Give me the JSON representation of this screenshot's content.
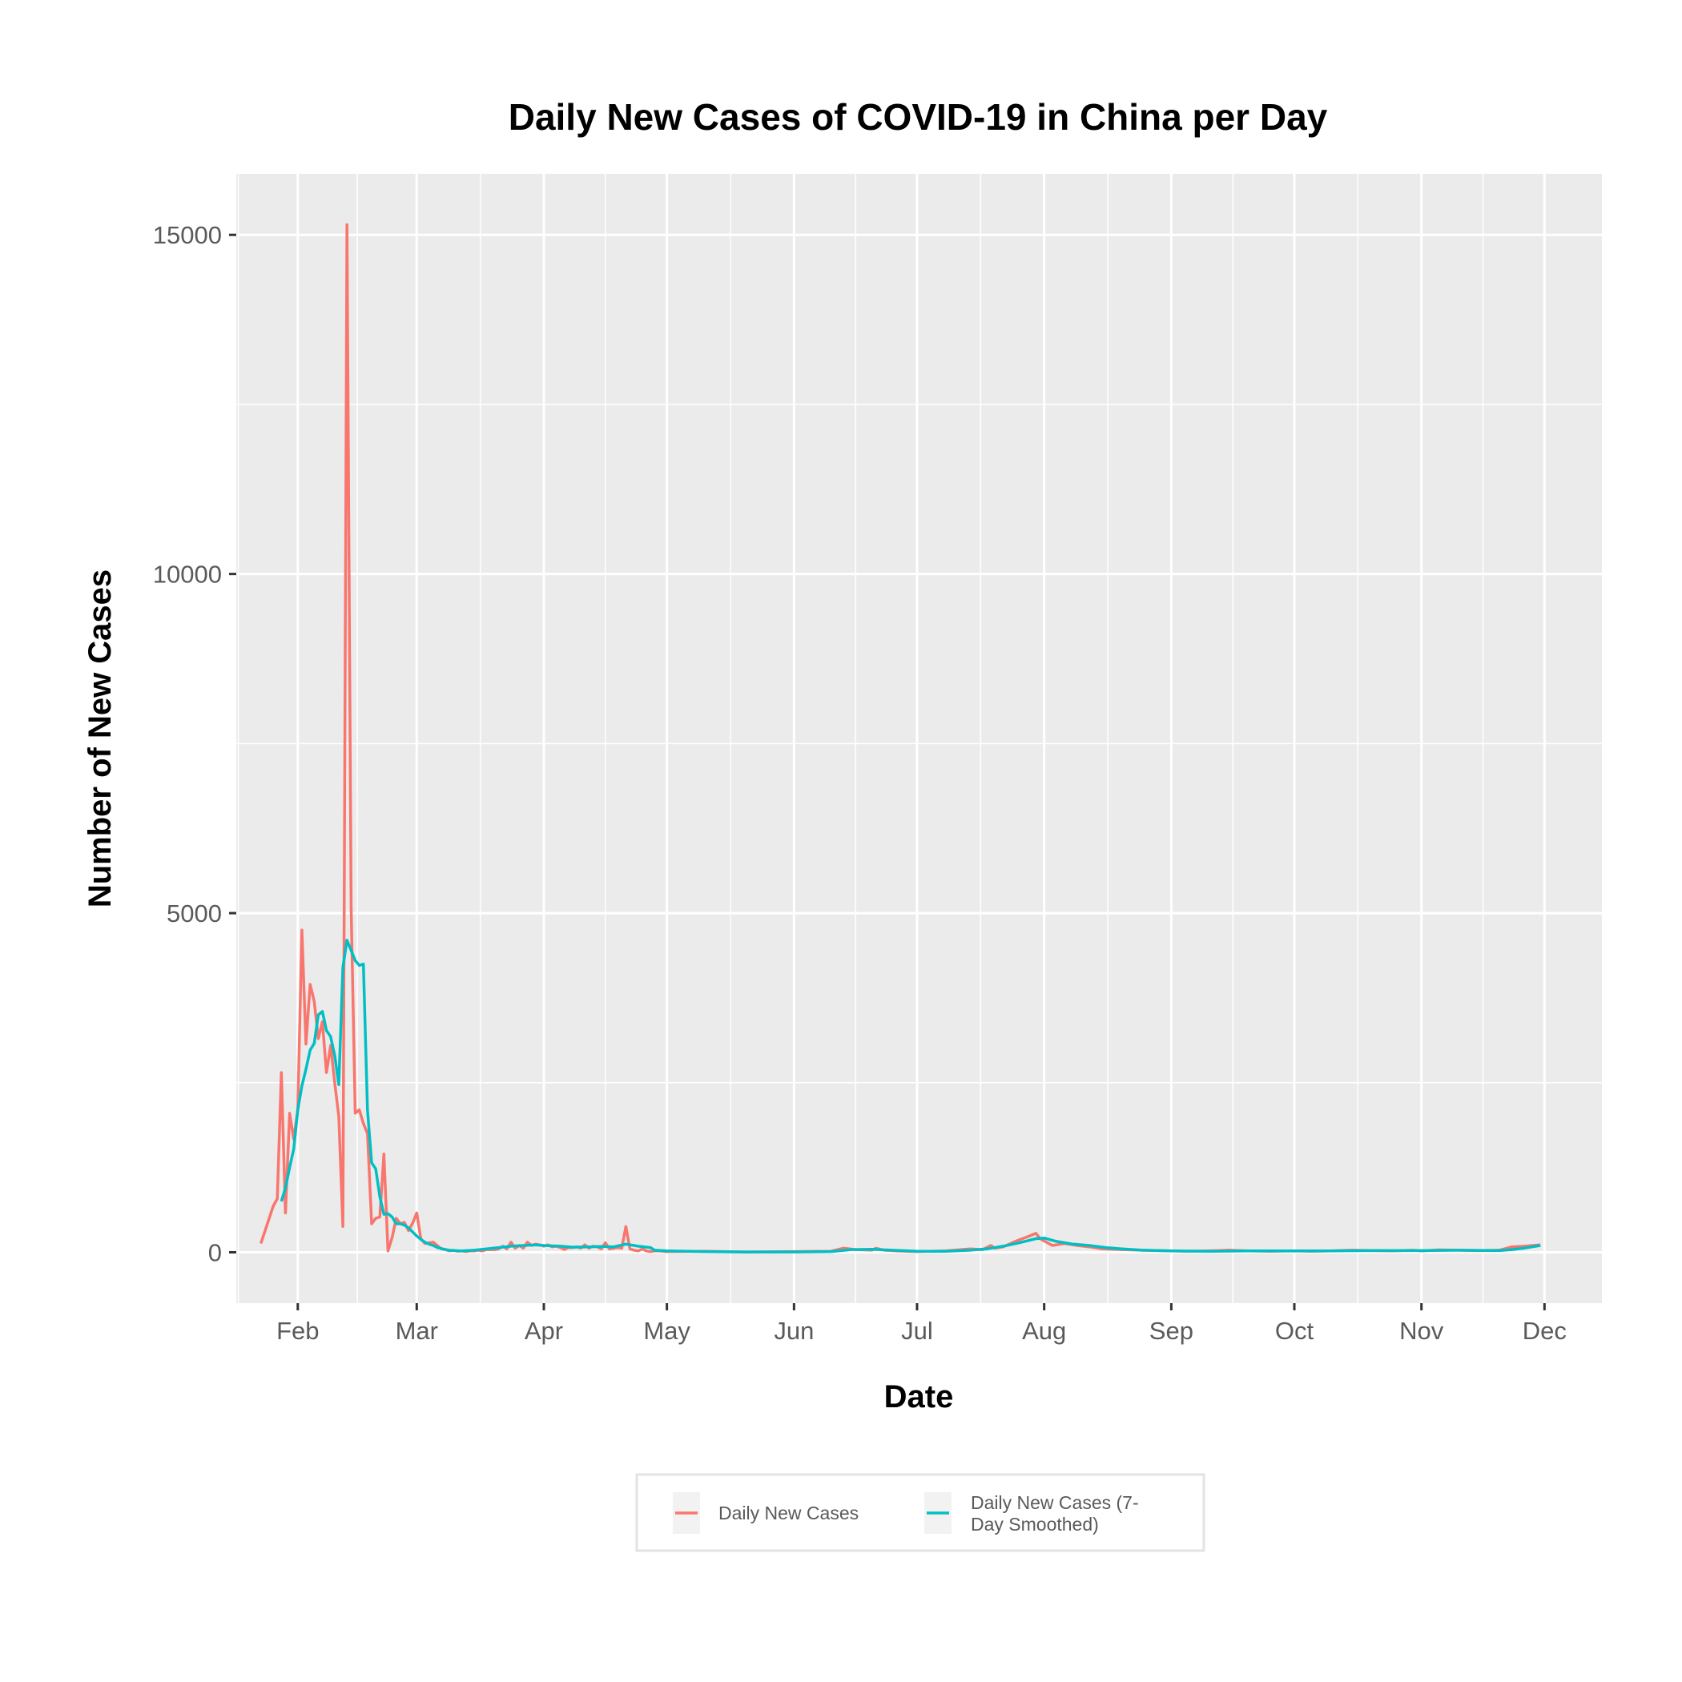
{
  "chart_data": {
    "type": "line",
    "title": "Daily New Cases of COVID-19 in China per Day",
    "xlabel": "Date",
    "ylabel": "Number of New Cases",
    "x_tick_labels": [
      "Feb",
      "Mar",
      "Apr",
      "May",
      "Jun",
      "Jul",
      "Aug",
      "Sep",
      "Oct",
      "Nov",
      "Dec"
    ],
    "x_tick_dates": [
      "2020-02-01",
      "2020-03-01",
      "2020-04-01",
      "2020-05-01",
      "2020-06-01",
      "2020-07-01",
      "2020-08-01",
      "2020-09-01",
      "2020-10-01",
      "2020-11-01",
      "2020-12-01"
    ],
    "xlim": [
      "2020-01-17",
      "2020-12-15"
    ],
    "y_ticks": [
      0,
      5000,
      10000,
      15000
    ],
    "y_tick_labels": [
      "0",
      "5000",
      "10000",
      "15000"
    ],
    "ylim": [
      -750,
      15900
    ],
    "grid": true,
    "legend_position": "bottom",
    "series": [
      {
        "name": "Daily New Cases",
        "color": "#F8766D",
        "points": [
          [
            "2020-01-23",
            130
          ],
          [
            "2020-01-26",
            680
          ],
          [
            "2020-01-27",
            790
          ],
          [
            "2020-01-28",
            2650
          ],
          [
            "2020-01-29",
            580
          ],
          [
            "2020-01-30",
            2050
          ],
          [
            "2020-01-31",
            1670
          ],
          [
            "2020-02-01",
            2100
          ],
          [
            "2020-02-02",
            4750
          ],
          [
            "2020-02-03",
            3070
          ],
          [
            "2020-02-04",
            3950
          ],
          [
            "2020-02-05",
            3700
          ],
          [
            "2020-02-06",
            3150
          ],
          [
            "2020-02-07",
            3400
          ],
          [
            "2020-02-08",
            2650
          ],
          [
            "2020-02-09",
            3050
          ],
          [
            "2020-02-10",
            2500
          ],
          [
            "2020-02-11",
            2000
          ],
          [
            "2020-02-12",
            380
          ],
          [
            "2020-02-13",
            15150
          ],
          [
            "2020-02-14",
            5100
          ],
          [
            "2020-02-15",
            2050
          ],
          [
            "2020-02-16",
            2100
          ],
          [
            "2020-02-17",
            1900
          ],
          [
            "2020-02-18",
            1750
          ],
          [
            "2020-02-19",
            420
          ],
          [
            "2020-02-20",
            500
          ],
          [
            "2020-02-21",
            520
          ],
          [
            "2020-02-22",
            1450
          ],
          [
            "2020-02-23",
            20
          ],
          [
            "2020-02-24",
            220
          ],
          [
            "2020-02-25",
            500
          ],
          [
            "2020-02-26",
            420
          ],
          [
            "2020-02-27",
            440
          ],
          [
            "2020-02-28",
            320
          ],
          [
            "2020-02-29",
            430
          ],
          [
            "2020-03-01",
            580
          ],
          [
            "2020-03-02",
            200
          ],
          [
            "2020-03-03",
            130
          ],
          [
            "2020-03-04",
            140
          ],
          [
            "2020-03-05",
            150
          ],
          [
            "2020-03-06",
            100
          ],
          [
            "2020-03-07",
            50
          ],
          [
            "2020-03-08",
            40
          ],
          [
            "2020-03-09",
            20
          ],
          [
            "2020-03-10",
            30
          ],
          [
            "2020-03-11",
            15
          ],
          [
            "2020-03-12",
            20
          ],
          [
            "2020-03-13",
            10
          ],
          [
            "2020-03-14",
            20
          ],
          [
            "2020-03-15",
            20
          ],
          [
            "2020-03-16",
            30
          ],
          [
            "2020-03-17",
            20
          ],
          [
            "2020-03-18",
            40
          ],
          [
            "2020-03-19",
            40
          ],
          [
            "2020-03-20",
            40
          ],
          [
            "2020-03-21",
            50
          ],
          [
            "2020-03-22",
            90
          ],
          [
            "2020-03-23",
            50
          ],
          [
            "2020-03-24",
            150
          ],
          [
            "2020-03-25",
            60
          ],
          [
            "2020-03-26",
            100
          ],
          [
            "2020-03-27",
            60
          ],
          [
            "2020-03-28",
            150
          ],
          [
            "2020-03-29",
            100
          ],
          [
            "2020-03-30",
            120
          ],
          [
            "2020-03-31",
            110
          ],
          [
            "2020-04-01",
            90
          ],
          [
            "2020-04-02",
            110
          ],
          [
            "2020-04-03",
            80
          ],
          [
            "2020-04-04",
            90
          ],
          [
            "2020-04-05",
            70
          ],
          [
            "2020-04-06",
            40
          ],
          [
            "2020-04-07",
            70
          ],
          [
            "2020-04-08",
            70
          ],
          [
            "2020-04-09",
            80
          ],
          [
            "2020-04-10",
            60
          ],
          [
            "2020-04-11",
            110
          ],
          [
            "2020-04-12",
            60
          ],
          [
            "2020-04-13",
            90
          ],
          [
            "2020-04-14",
            80
          ],
          [
            "2020-04-15",
            50
          ],
          [
            "2020-04-16",
            140
          ],
          [
            "2020-04-17",
            50
          ],
          [
            "2020-04-18",
            60
          ],
          [
            "2020-04-19",
            70
          ],
          [
            "2020-04-20",
            60
          ],
          [
            "2020-04-21",
            380
          ],
          [
            "2020-04-22",
            50
          ],
          [
            "2020-04-23",
            30
          ],
          [
            "2020-04-24",
            20
          ],
          [
            "2020-04-25",
            50
          ],
          [
            "2020-04-26",
            20
          ],
          [
            "2020-04-27",
            10
          ],
          [
            "2020-04-28",
            20
          ],
          [
            "2020-04-29",
            20
          ],
          [
            "2020-05-01",
            10
          ],
          [
            "2020-05-10",
            15
          ],
          [
            "2020-05-20",
            5
          ],
          [
            "2020-06-01",
            10
          ],
          [
            "2020-06-10",
            15
          ],
          [
            "2020-06-13",
            60
          ],
          [
            "2020-06-16",
            40
          ],
          [
            "2020-06-20",
            30
          ],
          [
            "2020-06-21",
            60
          ],
          [
            "2020-06-23",
            30
          ],
          [
            "2020-06-26",
            20
          ],
          [
            "2020-07-01",
            10
          ],
          [
            "2020-07-08",
            20
          ],
          [
            "2020-07-14",
            50
          ],
          [
            "2020-07-17",
            40
          ],
          [
            "2020-07-19",
            100
          ],
          [
            "2020-07-20",
            60
          ],
          [
            "2020-07-22",
            80
          ],
          [
            "2020-07-25",
            160
          ],
          [
            "2020-07-28",
            230
          ],
          [
            "2020-07-30",
            280
          ],
          [
            "2020-07-31",
            200
          ],
          [
            "2020-08-03",
            100
          ],
          [
            "2020-08-06",
            130
          ],
          [
            "2020-08-09",
            100
          ],
          [
            "2020-08-12",
            80
          ],
          [
            "2020-08-15",
            50
          ],
          [
            "2020-08-20",
            40
          ],
          [
            "2020-08-25",
            30
          ],
          [
            "2020-09-01",
            20
          ],
          [
            "2020-09-05",
            15
          ],
          [
            "2020-09-10",
            20
          ],
          [
            "2020-09-15",
            30
          ],
          [
            "2020-09-20",
            20
          ],
          [
            "2020-09-25",
            15
          ],
          [
            "2020-10-01",
            20
          ],
          [
            "2020-10-05",
            15
          ],
          [
            "2020-10-10",
            20
          ],
          [
            "2020-10-15",
            30
          ],
          [
            "2020-10-20",
            25
          ],
          [
            "2020-10-25",
            20
          ],
          [
            "2020-10-30",
            30
          ],
          [
            "2020-11-01",
            20
          ],
          [
            "2020-11-05",
            35
          ],
          [
            "2020-11-10",
            30
          ],
          [
            "2020-11-15",
            25
          ],
          [
            "2020-11-20",
            30
          ],
          [
            "2020-11-23",
            80
          ],
          [
            "2020-11-26",
            90
          ],
          [
            "2020-11-28",
            100
          ],
          [
            "2020-11-30",
            110
          ]
        ]
      },
      {
        "name": "Daily New Cases (7-Day Smoothed)",
        "color": "#00BFC4",
        "points": [
          [
            "2020-01-28",
            750
          ],
          [
            "2020-01-29",
            950
          ],
          [
            "2020-01-30",
            1250
          ],
          [
            "2020-01-31",
            1520
          ],
          [
            "2020-02-01",
            2100
          ],
          [
            "2020-02-02",
            2450
          ],
          [
            "2020-02-03",
            2700
          ],
          [
            "2020-02-04",
            2980
          ],
          [
            "2020-02-05",
            3080
          ],
          [
            "2020-02-06",
            3500
          ],
          [
            "2020-02-07",
            3550
          ],
          [
            "2020-02-08",
            3270
          ],
          [
            "2020-02-09",
            3180
          ],
          [
            "2020-02-10",
            2900
          ],
          [
            "2020-02-11",
            2470
          ],
          [
            "2020-02-12",
            4200
          ],
          [
            "2020-02-13",
            4600
          ],
          [
            "2020-02-14",
            4450
          ],
          [
            "2020-02-15",
            4300
          ],
          [
            "2020-02-16",
            4230
          ],
          [
            "2020-02-17",
            4250
          ],
          [
            "2020-02-18",
            2100
          ],
          [
            "2020-02-19",
            1320
          ],
          [
            "2020-02-20",
            1230
          ],
          [
            "2020-02-21",
            820
          ],
          [
            "2020-02-22",
            560
          ],
          [
            "2020-02-23",
            570
          ],
          [
            "2020-02-24",
            520
          ],
          [
            "2020-02-25",
            420
          ],
          [
            "2020-02-26",
            420
          ],
          [
            "2020-02-27",
            400
          ],
          [
            "2020-02-28",
            360
          ],
          [
            "2020-02-29",
            300
          ],
          [
            "2020-03-01",
            240
          ],
          [
            "2020-03-02",
            190
          ],
          [
            "2020-03-03",
            150
          ],
          [
            "2020-03-04",
            120
          ],
          [
            "2020-03-05",
            100
          ],
          [
            "2020-03-06",
            70
          ],
          [
            "2020-03-07",
            55
          ],
          [
            "2020-03-08",
            40
          ],
          [
            "2020-03-09",
            30
          ],
          [
            "2020-03-10",
            25
          ],
          [
            "2020-03-12",
            20
          ],
          [
            "2020-03-15",
            30
          ],
          [
            "2020-03-18",
            50
          ],
          [
            "2020-03-21",
            70
          ],
          [
            "2020-03-24",
            90
          ],
          [
            "2020-03-27",
            100
          ],
          [
            "2020-03-30",
            110
          ],
          [
            "2020-04-01",
            100
          ],
          [
            "2020-04-05",
            90
          ],
          [
            "2020-04-08",
            75
          ],
          [
            "2020-04-12",
            80
          ],
          [
            "2020-04-15",
            85
          ],
          [
            "2020-04-18",
            80
          ],
          [
            "2020-04-21",
            120
          ],
          [
            "2020-04-24",
            90
          ],
          [
            "2020-04-27",
            70
          ],
          [
            "2020-04-28",
            30
          ],
          [
            "2020-05-01",
            20
          ],
          [
            "2020-05-10",
            10
          ],
          [
            "2020-05-20",
            5
          ],
          [
            "2020-06-01",
            5
          ],
          [
            "2020-06-10",
            10
          ],
          [
            "2020-06-15",
            40
          ],
          [
            "2020-06-20",
            45
          ],
          [
            "2020-06-25",
            30
          ],
          [
            "2020-07-01",
            15
          ],
          [
            "2020-07-08",
            15
          ],
          [
            "2020-07-14",
            30
          ],
          [
            "2020-07-18",
            50
          ],
          [
            "2020-07-22",
            90
          ],
          [
            "2020-07-26",
            140
          ],
          [
            "2020-07-30",
            200
          ],
          [
            "2020-08-01",
            210
          ],
          [
            "2020-08-04",
            160
          ],
          [
            "2020-08-08",
            120
          ],
          [
            "2020-08-12",
            100
          ],
          [
            "2020-08-16",
            70
          ],
          [
            "2020-08-20",
            50
          ],
          [
            "2020-08-25",
            30
          ],
          [
            "2020-09-01",
            20
          ],
          [
            "2020-09-10",
            15
          ],
          [
            "2020-09-20",
            20
          ],
          [
            "2020-10-01",
            20
          ],
          [
            "2020-10-10",
            20
          ],
          [
            "2020-10-20",
            25
          ],
          [
            "2020-11-01",
            25
          ],
          [
            "2020-11-10",
            30
          ],
          [
            "2020-11-20",
            25
          ],
          [
            "2020-11-23",
            40
          ],
          [
            "2020-11-26",
            60
          ],
          [
            "2020-11-30",
            100
          ]
        ]
      }
    ]
  }
}
